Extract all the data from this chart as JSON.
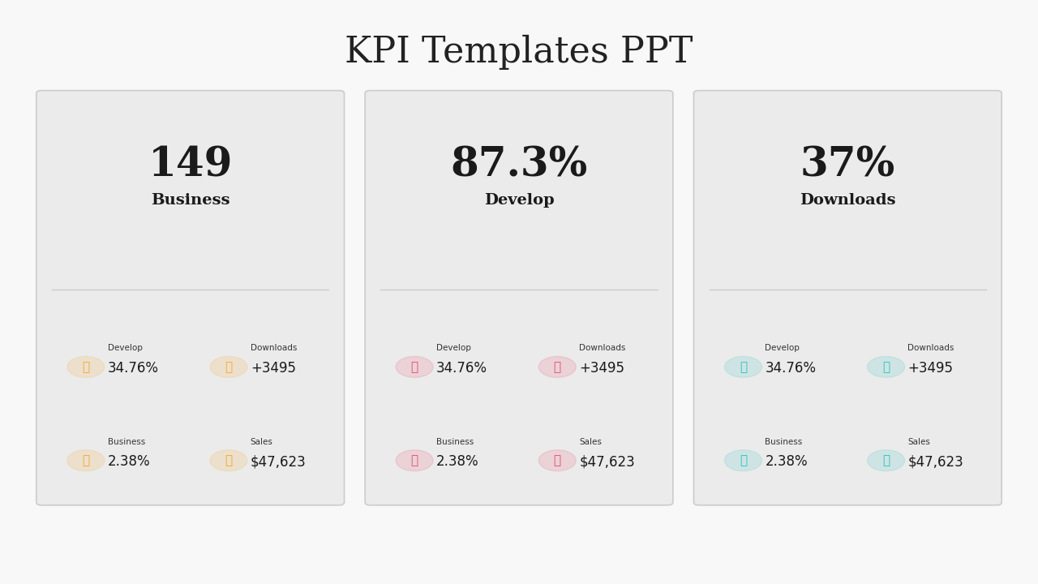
{
  "title": "KPI Templates PPT",
  "title_fontsize": 32,
  "title_color": "#222222",
  "bg_color": "#f5f5f5",
  "card_bg": "#ebebeb",
  "card_border": "#cccccc",
  "panels": [
    {
      "main_value": "149",
      "main_label": "Business",
      "icon_color": "#f5a623",
      "metrics": [
        {
          "label": "Develop",
          "value": "34.76%",
          "icon": "⚲"
        },
        {
          "label": "Downloads",
          "value": "+3495",
          "icon": "⚲"
        },
        {
          "label": "Business",
          "value": "2.38%",
          "icon": "⚲"
        },
        {
          "label": "Sales",
          "value": "$47,623",
          "icon": "⚲"
        }
      ]
    },
    {
      "main_value": "87.3%",
      "main_label": "Develop",
      "icon_color": "#e8476a",
      "metrics": [
        {
          "label": "Develop",
          "value": "34.76%",
          "icon": "⚲"
        },
        {
          "label": "Downloads",
          "value": "+3495",
          "icon": "⚲"
        },
        {
          "label": "Business",
          "value": "2.38%",
          "icon": "⚲"
        },
        {
          "label": "Sales",
          "value": "$47,623",
          "icon": "⚲"
        }
      ]
    },
    {
      "main_value": "37%",
      "main_label": "Downloads",
      "icon_color": "#2cbfbf",
      "metrics": [
        {
          "label": "Develop",
          "value": "34.76%",
          "icon": "⚲"
        },
        {
          "label": "Downloads",
          "value": "+3495",
          "icon": "⚲"
        },
        {
          "label": "Business",
          "value": "2.38%",
          "icon": "⚲"
        },
        {
          "label": "Sales",
          "value": "$47,623",
          "icon": "⚲"
        }
      ]
    }
  ],
  "icon_chars": {
    "develop": "🎓",
    "downloads": "👥",
    "business": "🌐",
    "sales": "👤"
  }
}
